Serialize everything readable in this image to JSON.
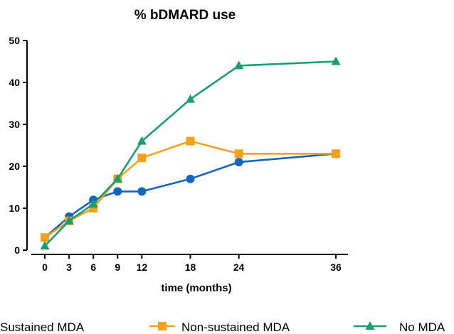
{
  "chart_data": {
    "type": "line",
    "title": "% bDMARD use",
    "xlabel": "time (months)",
    "ylabel": "",
    "x": [
      0,
      3,
      6,
      9,
      12,
      18,
      24,
      36
    ],
    "xlim": [
      0,
      36
    ],
    "ylim": [
      0,
      50
    ],
    "yticks": [
      0,
      10,
      20,
      30,
      40,
      50
    ],
    "grid": false,
    "legend_position": "bottom",
    "series": [
      {
        "name": "Sustained MDA",
        "marker": "circle",
        "color": "#1565C0",
        "values": [
          3,
          8,
          12,
          14,
          14,
          17,
          21,
          23
        ]
      },
      {
        "name": "Non-sustained MDA",
        "marker": "square",
        "color": "#F5A11C",
        "values": [
          3,
          7,
          10,
          17,
          22,
          26,
          23,
          23
        ]
      },
      {
        "name": "No MDA",
        "marker": "triangle",
        "color": "#1A9E6E",
        "values": [
          1,
          7,
          11,
          17,
          26,
          36,
          44,
          45
        ]
      }
    ]
  }
}
